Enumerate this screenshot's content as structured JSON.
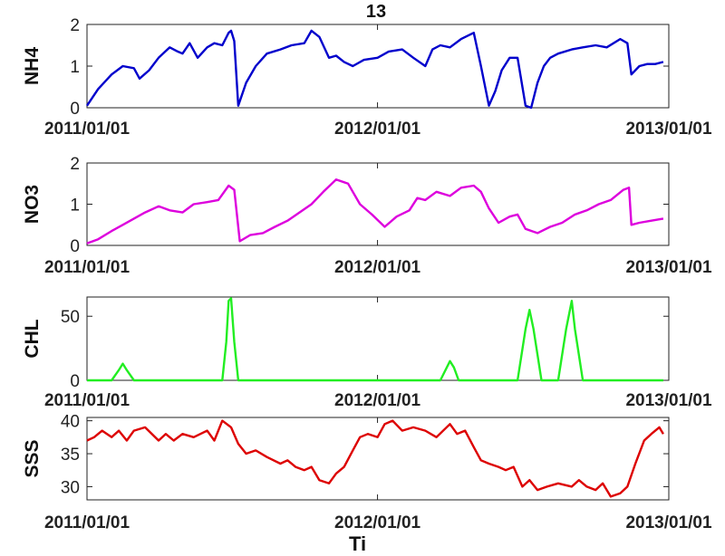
{
  "figure": {
    "title": "13",
    "xlabel_partial": "Ti"
  },
  "chart_data": [
    {
      "type": "line",
      "ylabel": "NH4",
      "ylim": [
        0,
        2
      ],
      "yticks": [
        0,
        1,
        2
      ],
      "xticks": [
        "2011/01/01",
        "2012/01/01",
        "2013/01/01"
      ],
      "color": "#0000cc",
      "series": [
        {
          "x": [
            "2011/01/01",
            "2011/01/15",
            "2011/02/01",
            "2011/02/15",
            "2011/03/01",
            "2011/03/08",
            "2011/03/20",
            "2011/04/01",
            "2011/04/15",
            "2011/04/25",
            "2011/05/01",
            "2011/05/10",
            "2011/05/20",
            "2011/06/01",
            "2011/06/10",
            "2011/06/20",
            "2011/06/28",
            "2011/07/01",
            "2011/07/05",
            "2011/07/10",
            "2011/07/20",
            "2011/08/01",
            "2011/08/15",
            "2011/09/01",
            "2011/09/15",
            "2011/10/01",
            "2011/10/10",
            "2011/10/20",
            "2011/11/01",
            "2011/11/10",
            "2011/11/20",
            "2011/12/01",
            "2011/12/15",
            "2012/01/01",
            "2012/01/15",
            "2012/02/01",
            "2012/02/15",
            "2012/03/01",
            "2012/03/10",
            "2012/03/20",
            "2012/04/01",
            "2012/04/15",
            "2012/05/01",
            "2012/05/10",
            "2012/05/20",
            "2012/05/28",
            "2012/06/05",
            "2012/06/15",
            "2012/06/25",
            "2012/07/05",
            "2012/07/12",
            "2012/07/20",
            "2012/07/28",
            "2012/08/05",
            "2012/08/15",
            "2012/09/01",
            "2012/09/15",
            "2012/10/01",
            "2012/10/15",
            "2012/11/01",
            "2012/11/10",
            "2012/11/15",
            "2012/11/25",
            "2012/12/05",
            "2012/12/15",
            "2012/12/25"
          ],
          "y": [
            0.05,
            0.45,
            0.8,
            1.0,
            0.95,
            0.7,
            0.9,
            1.2,
            1.45,
            1.35,
            1.3,
            1.55,
            1.2,
            1.45,
            1.55,
            1.5,
            1.8,
            1.85,
            1.6,
            0.05,
            0.6,
            1.0,
            1.3,
            1.4,
            1.5,
            1.55,
            1.85,
            1.7,
            1.2,
            1.25,
            1.1,
            1.0,
            1.15,
            1.2,
            1.35,
            1.4,
            1.2,
            1.0,
            1.4,
            1.5,
            1.45,
            1.65,
            1.8,
            1.0,
            0.05,
            0.4,
            0.9,
            1.2,
            1.2,
            0.05,
            0.0,
            0.6,
            1.0,
            1.2,
            1.3,
            1.4,
            1.45,
            1.5,
            1.45,
            1.65,
            1.55,
            0.8,
            1.0,
            1.05,
            1.05,
            1.1
          ]
        }
      ]
    },
    {
      "type": "line",
      "ylabel": "NO3",
      "ylim": [
        0,
        2
      ],
      "yticks": [
        0,
        1,
        2
      ],
      "xticks": [
        "2011/01/01",
        "2012/01/01",
        "2013/01/01"
      ],
      "color": "#dd00dd",
      "series": [
        {
          "x": [
            "2011/01/01",
            "2011/01/15",
            "2011/02/01",
            "2011/02/15",
            "2011/03/01",
            "2011/03/15",
            "2011/04/01",
            "2011/04/15",
            "2011/05/01",
            "2011/05/15",
            "2011/06/01",
            "2011/06/15",
            "2011/06/28",
            "2011/07/05",
            "2011/07/12",
            "2011/07/25",
            "2011/08/10",
            "2011/08/25",
            "2011/09/10",
            "2011/09/25",
            "2011/10/10",
            "2011/10/25",
            "2011/11/10",
            "2011/11/25",
            "2011/12/10",
            "2011/12/25",
            "2012/01/10",
            "2012/01/25",
            "2012/02/10",
            "2012/02/20",
            "2012/03/01",
            "2012/03/15",
            "2012/04/01",
            "2012/04/15",
            "2012/05/01",
            "2012/05/10",
            "2012/05/20",
            "2012/06/01",
            "2012/06/15",
            "2012/06/25",
            "2012/07/05",
            "2012/07/20",
            "2012/08/05",
            "2012/08/20",
            "2012/09/05",
            "2012/09/20",
            "2012/10/05",
            "2012/10/20",
            "2012/11/05",
            "2012/11/12",
            "2012/11/15",
            "2012/11/25",
            "2012/12/10",
            "2012/12/25"
          ],
          "y": [
            0.05,
            0.15,
            0.35,
            0.5,
            0.65,
            0.8,
            0.95,
            0.85,
            0.8,
            1.0,
            1.05,
            1.1,
            1.45,
            1.35,
            0.1,
            0.25,
            0.3,
            0.45,
            0.6,
            0.8,
            1.0,
            1.3,
            1.6,
            1.5,
            1.0,
            0.75,
            0.45,
            0.7,
            0.85,
            1.15,
            1.1,
            1.3,
            1.2,
            1.4,
            1.45,
            1.3,
            0.9,
            0.55,
            0.7,
            0.75,
            0.4,
            0.3,
            0.45,
            0.55,
            0.75,
            0.85,
            1.0,
            1.1,
            1.35,
            1.4,
            0.5,
            0.55,
            0.6,
            0.65
          ]
        }
      ]
    },
    {
      "type": "line",
      "ylabel": "CHL",
      "ylim": [
        0,
        65
      ],
      "yticks": [
        0,
        50
      ],
      "xticks": [
        "2011/01/01",
        "2012/01/01",
        "2013/01/01"
      ],
      "color": "#22ee22",
      "series": [
        {
          "x": [
            "2011/01/01",
            "2011/02/01",
            "2011/02/10",
            "2011/02/15",
            "2011/02/20",
            "2011/03/01",
            "2011/06/20",
            "2011/06/25",
            "2011/06/28",
            "2011/07/01",
            "2011/07/05",
            "2011/07/10",
            "2012/03/20",
            "2012/03/28",
            "2012/04/01",
            "2012/04/06",
            "2012/04/12",
            "2012/06/25",
            "2012/07/05",
            "2012/07/10",
            "2012/07/15",
            "2012/07/25",
            "2012/08/15",
            "2012/08/25",
            "2012/09/01",
            "2012/09/05",
            "2012/09/15",
            "2012/12/25"
          ],
          "y": [
            0,
            0,
            8,
            13,
            8,
            0,
            0,
            30,
            62,
            64,
            30,
            0,
            0,
            10,
            15,
            10,
            0,
            0,
            40,
            55,
            40,
            0,
            0,
            40,
            62,
            40,
            0,
            0
          ]
        }
      ]
    },
    {
      "type": "line",
      "ylabel": "SSS",
      "ylim": [
        28,
        40.5
      ],
      "yticks": [
        30,
        35,
        40
      ],
      "xticks": [
        "2011/01/01",
        "2012/01/01",
        "2013/01/01"
      ],
      "color": "#dd0000",
      "series": [
        {
          "x": [
            "2011/01/01",
            "2011/01/10",
            "2011/01/20",
            "2011/02/01",
            "2011/02/10",
            "2011/02/20",
            "2011/03/01",
            "2011/03/15",
            "2011/04/01",
            "2011/04/10",
            "2011/04/20",
            "2011/05/01",
            "2011/05/15",
            "2011/06/01",
            "2011/06/10",
            "2011/06/20",
            "2011/07/01",
            "2011/07/10",
            "2011/07/20",
            "2011/08/01",
            "2011/08/15",
            "2011/09/01",
            "2011/09/10",
            "2011/09/20",
            "2011/10/01",
            "2011/10/10",
            "2011/10/20",
            "2011/11/01",
            "2011/11/10",
            "2011/11/20",
            "2011/12/01",
            "2011/12/10",
            "2011/12/20",
            "2012/01/01",
            "2012/01/10",
            "2012/01/20",
            "2012/02/01",
            "2012/02/15",
            "2012/03/01",
            "2012/03/15",
            "2012/04/01",
            "2012/04/10",
            "2012/04/20",
            "2012/05/01",
            "2012/05/10",
            "2012/05/20",
            "2012/06/01",
            "2012/06/10",
            "2012/06/20",
            "2012/07/01",
            "2012/07/10",
            "2012/07/20",
            "2012/08/01",
            "2012/08/15",
            "2012/09/01",
            "2012/09/10",
            "2012/09/20",
            "2012/10/01",
            "2012/10/10",
            "2012/10/20",
            "2012/11/01",
            "2012/11/10",
            "2012/11/20",
            "2012/12/01",
            "2012/12/10",
            "2012/12/20",
            "2012/12/25"
          ],
          "y": [
            37.0,
            37.5,
            38.5,
            37.5,
            38.5,
            37.0,
            38.5,
            39.0,
            37.0,
            38.0,
            37.0,
            38.0,
            37.5,
            38.5,
            37.0,
            40.0,
            39.0,
            36.5,
            35.0,
            35.5,
            34.5,
            33.5,
            34.0,
            33.0,
            32.5,
            33.0,
            31.0,
            30.5,
            32.0,
            33.0,
            35.5,
            37.5,
            38.0,
            37.5,
            39.5,
            40.0,
            38.5,
            39.0,
            38.5,
            37.5,
            39.5,
            38.0,
            38.5,
            36.0,
            34.0,
            33.5,
            33.0,
            32.5,
            33.0,
            30.0,
            31.0,
            29.5,
            30.0,
            30.5,
            30.0,
            31.0,
            30.0,
            29.5,
            30.5,
            28.5,
            29.0,
            30.0,
            33.5,
            37.0,
            38.0,
            39.0,
            38.0
          ]
        }
      ]
    }
  ]
}
